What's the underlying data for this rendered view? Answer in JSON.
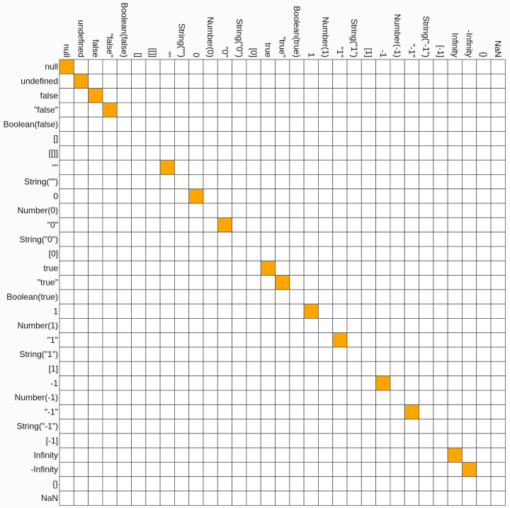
{
  "chart_data": {
    "type": "heatmap",
    "title": "",
    "labels": [
      "null",
      "undefined",
      "false",
      "\"false\"",
      "Boolean(false)",
      "[]",
      "[[]]",
      "\"\"",
      "String(\"\")",
      "0",
      "Number(0)",
      "\"0\"",
      "String(\"0\")",
      "[0]",
      "true",
      "\"true\"",
      "Boolean(true)",
      "1",
      "Number(1)",
      "\"1\"",
      "String(\"1\")",
      "[1]",
      "-1",
      "Number(-1)",
      "\"-1\"",
      "String(\"-1\")",
      "[-1]",
      "Infinity",
      "-Infinity",
      "{}",
      "NaN"
    ],
    "highlighted_cells": [
      [
        0,
        0
      ],
      [
        1,
        1
      ],
      [
        2,
        2
      ],
      [
        3,
        3
      ],
      [
        7,
        7
      ],
      [
        9,
        9
      ],
      [
        11,
        11
      ],
      [
        14,
        14
      ],
      [
        15,
        15
      ],
      [
        17,
        17
      ],
      [
        19,
        19
      ],
      [
        22,
        22
      ],
      [
        24,
        24
      ],
      [
        27,
        27
      ],
      [
        28,
        28
      ]
    ],
    "colors": {
      "highlight": "#ffa500",
      "cell_background": "#ffffff",
      "grid_line": "#555555",
      "page_background": "#fbfbfb",
      "label_text": "#111111"
    }
  }
}
